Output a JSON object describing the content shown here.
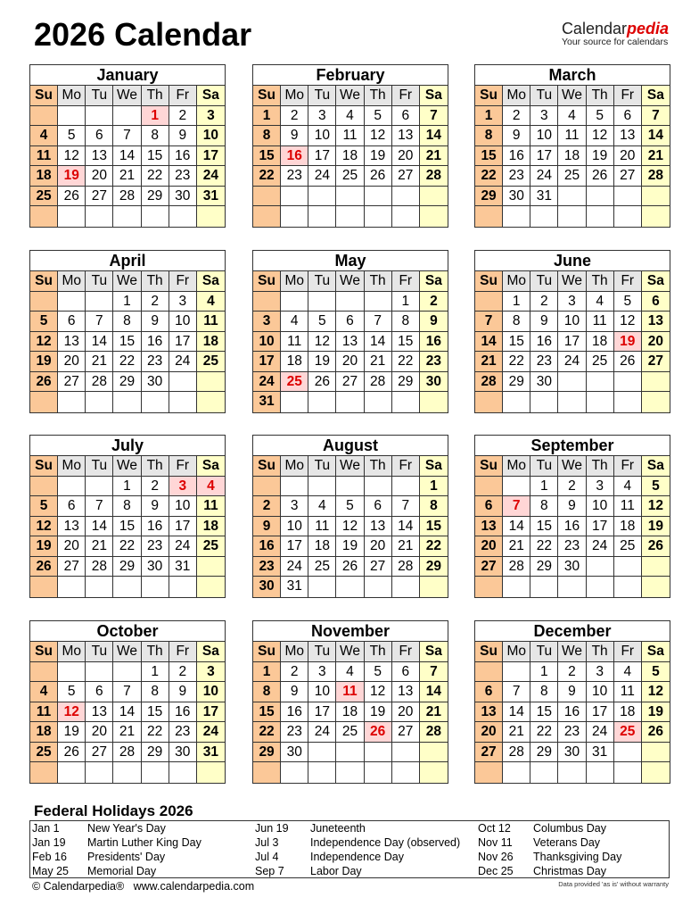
{
  "title": "2026 Calendar",
  "logo": {
    "brand_a": "Calendar",
    "brand_b": "pedia",
    "tagline": "Your source for calendars"
  },
  "weekdays": [
    "Su",
    "Mo",
    "Tu",
    "We",
    "Th",
    "Fr",
    "Sa"
  ],
  "colors": {
    "sunday": "#fbc898",
    "saturday": "#ffffc8",
    "header": "#e6e6e6",
    "holiday_bg": "#ffd6d6",
    "holiday_text": "#dd0000"
  },
  "months": [
    {
      "name": "January",
      "start": 4,
      "days": 31,
      "holidays": [
        1,
        19
      ]
    },
    {
      "name": "February",
      "start": 0,
      "days": 28,
      "holidays": [
        16
      ]
    },
    {
      "name": "March",
      "start": 0,
      "days": 31,
      "holidays": []
    },
    {
      "name": "April",
      "start": 3,
      "days": 30,
      "holidays": []
    },
    {
      "name": "May",
      "start": 5,
      "days": 31,
      "holidays": [
        25
      ]
    },
    {
      "name": "June",
      "start": 1,
      "days": 30,
      "holidays": [
        19
      ]
    },
    {
      "name": "July",
      "start": 3,
      "days": 31,
      "holidays": [
        3,
        4
      ]
    },
    {
      "name": "August",
      "start": 6,
      "days": 31,
      "holidays": []
    },
    {
      "name": "September",
      "start": 2,
      "days": 30,
      "holidays": [
        7
      ]
    },
    {
      "name": "October",
      "start": 4,
      "days": 31,
      "holidays": [
        12
      ]
    },
    {
      "name": "November",
      "start": 0,
      "days": 30,
      "holidays": [
        11,
        26
      ]
    },
    {
      "name": "December",
      "start": 2,
      "days": 31,
      "holidays": [
        25
      ]
    }
  ],
  "holidays_title": "Federal Holidays 2026",
  "holidays": [
    {
      "date": "Jan 1",
      "name": "New Year's Day"
    },
    {
      "date": "Jan 19",
      "name": "Martin Luther King Day"
    },
    {
      "date": "Feb 16",
      "name": "Presidents' Day"
    },
    {
      "date": "May 25",
      "name": "Memorial Day"
    },
    {
      "date": "Jun 19",
      "name": "Juneteenth"
    },
    {
      "date": "Jul 3",
      "name": "Independence Day (observed)"
    },
    {
      "date": "Jul 4",
      "name": "Independence Day"
    },
    {
      "date": "Sep 7",
      "name": "Labor Day"
    },
    {
      "date": "Oct 12",
      "name": "Columbus Day"
    },
    {
      "date": "Nov 11",
      "name": "Veterans Day"
    },
    {
      "date": "Nov 26",
      "name": "Thanksgiving Day"
    },
    {
      "date": "Dec 25",
      "name": "Christmas Day"
    }
  ],
  "footer": "© Calendarpedia®   www.calendarpedia.com",
  "disclaimer": "Data provided 'as is' without warranty"
}
